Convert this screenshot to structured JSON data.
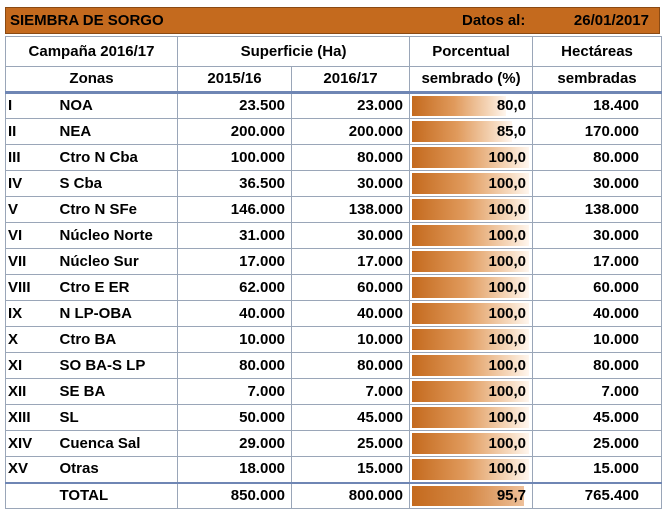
{
  "header": {
    "title": "SIEMBRA DE SORGO",
    "date_label": "Datos al:",
    "date_value": "26/01/2017"
  },
  "columns": {
    "campaign": "Campaña 2016/17",
    "surface": "Superficie (Ha)",
    "pct_line1": "Porcentual",
    "pct_line2": "sembrado (%)",
    "ha_line1": "Hectáreas",
    "ha_line2": "sembradas",
    "zones": "Zonas",
    "y1": "2015/16",
    "y2": "2016/17"
  },
  "colors": {
    "bar": "#c46a1e",
    "border": "#6f86b4"
  },
  "rows": [
    {
      "roman": "I",
      "zone": "NOA",
      "s1516": "23.500",
      "s1617": "23.000",
      "pct": "80,0",
      "pct_num": 80.0,
      "ha": "18.400"
    },
    {
      "roman": "II",
      "zone": "NEA",
      "s1516": "200.000",
      "s1617": "200.000",
      "pct": "85,0",
      "pct_num": 85.0,
      "ha": "170.000"
    },
    {
      "roman": "III",
      "zone": "Ctro N Cba",
      "s1516": "100.000",
      "s1617": "80.000",
      "pct": "100,0",
      "pct_num": 100.0,
      "ha": "80.000"
    },
    {
      "roman": "IV",
      "zone": "S Cba",
      "s1516": "36.500",
      "s1617": "30.000",
      "pct": "100,0",
      "pct_num": 100.0,
      "ha": "30.000"
    },
    {
      "roman": "V",
      "zone": "Ctro N SFe",
      "s1516": "146.000",
      "s1617": "138.000",
      "pct": "100,0",
      "pct_num": 100.0,
      "ha": "138.000"
    },
    {
      "roman": "VI",
      "zone": "Núcleo Norte",
      "s1516": "31.000",
      "s1617": "30.000",
      "pct": "100,0",
      "pct_num": 100.0,
      "ha": "30.000"
    },
    {
      "roman": "VII",
      "zone": "Núcleo Sur",
      "s1516": "17.000",
      "s1617": "17.000",
      "pct": "100,0",
      "pct_num": 100.0,
      "ha": "17.000"
    },
    {
      "roman": "VIII",
      "zone": "Ctro E ER",
      "s1516": "62.000",
      "s1617": "60.000",
      "pct": "100,0",
      "pct_num": 100.0,
      "ha": "60.000"
    },
    {
      "roman": "IX",
      "zone": "N LP-OBA",
      "s1516": "40.000",
      "s1617": "40.000",
      "pct": "100,0",
      "pct_num": 100.0,
      "ha": "40.000"
    },
    {
      "roman": "X",
      "zone": "Ctro BA",
      "s1516": "10.000",
      "s1617": "10.000",
      "pct": "100,0",
      "pct_num": 100.0,
      "ha": "10.000"
    },
    {
      "roman": "XI",
      "zone": "SO BA-S LP",
      "s1516": "80.000",
      "s1617": "80.000",
      "pct": "100,0",
      "pct_num": 100.0,
      "ha": "80.000"
    },
    {
      "roman": "XII",
      "zone": "SE BA",
      "s1516": "7.000",
      "s1617": "7.000",
      "pct": "100,0",
      "pct_num": 100.0,
      "ha": "7.000"
    },
    {
      "roman": "XIII",
      "zone": "SL",
      "s1516": "50.000",
      "s1617": "45.000",
      "pct": "100,0",
      "pct_num": 100.0,
      "ha": "45.000"
    },
    {
      "roman": "XIV",
      "zone": "Cuenca Sal",
      "s1516": "29.000",
      "s1617": "25.000",
      "pct": "100,0",
      "pct_num": 100.0,
      "ha": "25.000"
    },
    {
      "roman": "XV",
      "zone": "Otras",
      "s1516": "18.000",
      "s1617": "15.000",
      "pct": "100,0",
      "pct_num": 100.0,
      "ha": "15.000"
    }
  ],
  "total": {
    "label": "TOTAL",
    "s1516": "850.000",
    "s1617": "800.000",
    "pct": "95,7",
    "pct_num": 95.7,
    "ha": "765.400"
  }
}
